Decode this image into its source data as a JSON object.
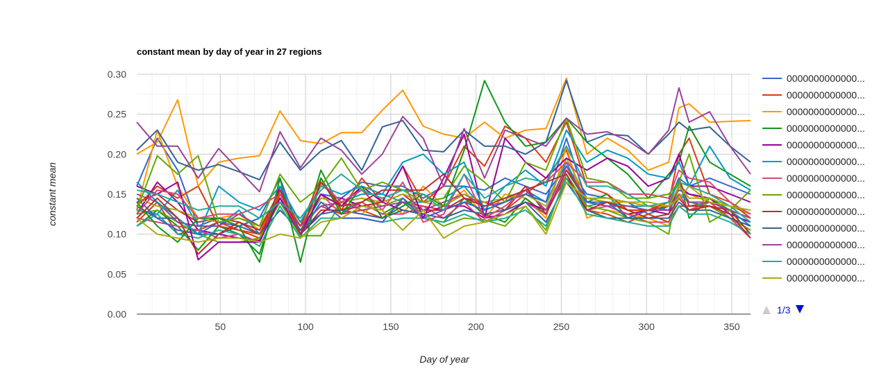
{
  "chart_data": {
    "type": "line",
    "title": "constant mean by day of year in 27 regions",
    "xlabel": "Day of year",
    "ylabel": "constant mean",
    "xlim": [
      1,
      361
    ],
    "ylim": [
      0,
      0.3
    ],
    "x_ticks": [
      50,
      100,
      150,
      200,
      250,
      300,
      350
    ],
    "y_ticks": [
      "0.00",
      "0.05",
      "0.10",
      "0.15",
      "0.20",
      "0.25",
      "0.30"
    ],
    "grid": true,
    "legend_position": "right",
    "legend_page": "1/3",
    "x": [
      1,
      13,
      25,
      37,
      49,
      61,
      73,
      85,
      97,
      109,
      121,
      133,
      145,
      157,
      169,
      181,
      193,
      205,
      217,
      229,
      241,
      253,
      265,
      277,
      289,
      301,
      313,
      319,
      325,
      337,
      349,
      361
    ],
    "series": [
      {
        "name": "0000000000000...",
        "color": "#3366cc",
        "values": [
          0.145,
          0.12,
          0.105,
          0.1,
          0.115,
          0.11,
          0.12,
          0.17,
          0.1,
          0.14,
          0.12,
          0.12,
          0.115,
          0.145,
          0.12,
          0.13,
          0.14,
          0.13,
          0.14,
          0.15,
          0.14,
          0.22,
          0.14,
          0.14,
          0.12,
          0.13,
          0.14,
          0.17,
          0.16,
          0.17,
          0.16,
          0.15
        ]
      },
      {
        "name": "0000000000000...",
        "color": "#dc3912",
        "values": [
          0.135,
          0.16,
          0.145,
          0.16,
          0.11,
          0.105,
          0.1,
          0.15,
          0.11,
          0.17,
          0.13,
          0.17,
          0.14,
          0.185,
          0.14,
          0.16,
          0.21,
          0.185,
          0.235,
          0.22,
          0.19,
          0.24,
          0.16,
          0.15,
          0.13,
          0.13,
          0.14,
          0.2,
          0.22,
          0.15,
          0.14,
          0.12
        ]
      },
      {
        "name": "0000000000000...",
        "color": "#ff9900",
        "values": [
          0.2,
          0.215,
          0.268,
          0.16,
          0.19,
          0.195,
          0.198,
          0.254,
          0.217,
          0.213,
          0.227,
          0.227,
          0.255,
          0.28,
          0.235,
          0.225,
          0.22,
          0.24,
          0.22,
          0.23,
          0.232,
          0.295,
          0.2,
          0.22,
          0.205,
          0.18,
          0.19,
          0.258,
          0.263,
          0.24,
          0.241,
          0.242
        ]
      },
      {
        "name": "0000000000000...",
        "color": "#109618",
        "values": [
          0.14,
          0.11,
          0.09,
          0.12,
          0.12,
          0.11,
          0.065,
          0.17,
          0.065,
          0.17,
          0.125,
          0.16,
          0.12,
          0.135,
          0.15,
          0.135,
          0.205,
          0.292,
          0.24,
          0.21,
          0.215,
          0.245,
          0.215,
          0.195,
          0.175,
          0.145,
          0.175,
          0.19,
          0.235,
          0.19,
          0.175,
          0.16
        ]
      },
      {
        "name": "0000000000000...",
        "color": "#990099",
        "values": [
          0.16,
          0.15,
          0.165,
          0.068,
          0.09,
          0.09,
          0.09,
          0.145,
          0.1,
          0.15,
          0.135,
          0.16,
          0.14,
          0.185,
          0.12,
          0.17,
          0.225,
          0.12,
          0.22,
          0.19,
          0.17,
          0.195,
          0.18,
          0.195,
          0.185,
          0.16,
          0.17,
          0.2,
          0.16,
          0.16,
          0.15,
          0.14
        ]
      },
      {
        "name": "0000000000000...",
        "color": "#0099c6",
        "values": [
          0.165,
          0.14,
          0.12,
          0.1,
          0.16,
          0.14,
          0.13,
          0.16,
          0.115,
          0.16,
          0.15,
          0.16,
          0.15,
          0.19,
          0.2,
          0.175,
          0.19,
          0.13,
          0.16,
          0.18,
          0.16,
          0.23,
          0.19,
          0.205,
          0.195,
          0.175,
          0.17,
          0.19,
          0.16,
          0.21,
          0.17,
          0.155
        ]
      },
      {
        "name": "0000000000000...",
        "color": "#dd4477",
        "values": [
          0.125,
          0.155,
          0.15,
          0.12,
          0.125,
          0.125,
          0.135,
          0.15,
          0.1,
          0.165,
          0.14,
          0.155,
          0.13,
          0.165,
          0.115,
          0.125,
          0.175,
          0.12,
          0.135,
          0.155,
          0.165,
          0.19,
          0.165,
          0.165,
          0.15,
          0.15,
          0.145,
          0.18,
          0.17,
          0.165,
          0.14,
          0.125
        ]
      },
      {
        "name": "0000000000000...",
        "color": "#66aa00",
        "values": [
          0.13,
          0.198,
          0.175,
          0.198,
          0.115,
          0.12,
          0.11,
          0.175,
          0.14,
          0.16,
          0.195,
          0.155,
          0.165,
          0.155,
          0.14,
          0.145,
          0.185,
          0.165,
          0.14,
          0.19,
          0.18,
          0.245,
          0.17,
          0.165,
          0.145,
          0.145,
          0.15,
          0.165,
          0.2,
          0.115,
          0.13,
          0.155
        ]
      },
      {
        "name": "0000000000000...",
        "color": "#b82e2e",
        "values": [
          0.12,
          0.145,
          0.12,
          0.075,
          0.1,
          0.115,
          0.105,
          0.155,
          0.1,
          0.165,
          0.135,
          0.14,
          0.155,
          0.155,
          0.155,
          0.175,
          0.145,
          0.135,
          0.145,
          0.155,
          0.165,
          0.175,
          0.13,
          0.14,
          0.13,
          0.12,
          0.125,
          0.145,
          0.13,
          0.135,
          0.125,
          0.095
        ]
      },
      {
        "name": "0000000000000...",
        "color": "#316395",
        "values": [
          0.205,
          0.23,
          0.19,
          0.18,
          0.187,
          0.178,
          0.168,
          0.215,
          0.18,
          0.204,
          0.217,
          0.18,
          0.234,
          0.242,
          0.205,
          0.203,
          0.23,
          0.21,
          0.21,
          0.2,
          0.215,
          0.292,
          0.215,
          0.225,
          0.223,
          0.2,
          0.225,
          0.24,
          0.23,
          0.234,
          0.21,
          0.19
        ]
      },
      {
        "name": "0000000000000...",
        "color": "#994499",
        "values": [
          0.24,
          0.21,
          0.21,
          0.17,
          0.207,
          0.18,
          0.153,
          0.228,
          0.183,
          0.22,
          0.205,
          0.175,
          0.2,
          0.247,
          0.22,
          0.16,
          0.232,
          0.17,
          0.23,
          0.22,
          0.21,
          0.245,
          0.225,
          0.228,
          0.217,
          0.2,
          0.23,
          0.283,
          0.24,
          0.253,
          0.21,
          0.175
        ]
      },
      {
        "name": "0000000000000...",
        "color": "#22aa99",
        "values": [
          0.155,
          0.15,
          0.14,
          0.13,
          0.135,
          0.135,
          0.12,
          0.14,
          0.12,
          0.155,
          0.175,
          0.155,
          0.145,
          0.155,
          0.15,
          0.13,
          0.175,
          0.145,
          0.16,
          0.17,
          0.165,
          0.21,
          0.16,
          0.16,
          0.15,
          0.135,
          0.14,
          0.165,
          0.16,
          0.15,
          0.135,
          0.115
        ]
      },
      {
        "name": "0000000000000...",
        "color": "#aaaa11",
        "values": [
          0.12,
          0.1,
          0.095,
          0.09,
          0.095,
          0.095,
          0.09,
          0.1,
          0.095,
          0.115,
          0.12,
          0.135,
          0.13,
          0.105,
          0.13,
          0.095,
          0.11,
          0.115,
          0.125,
          0.135,
          0.1,
          0.165,
          0.145,
          0.145,
          0.14,
          0.14,
          0.135,
          0.145,
          0.16,
          0.14,
          0.135,
          0.13
        ]
      },
      {
        "values": [
          0.16,
          0.22,
          0.18,
          0.11,
          0.12,
          0.11,
          0.12,
          0.14,
          0.11,
          0.15,
          0.145,
          0.165,
          0.16,
          0.16,
          0.145,
          0.16,
          0.16,
          0.155,
          0.17,
          0.16,
          0.15,
          0.185,
          0.15,
          0.145,
          0.14,
          0.125,
          0.135,
          0.155,
          0.15,
          0.145,
          0.135,
          0.125
        ]
      },
      {
        "values": [
          0.115,
          0.14,
          0.1,
          0.105,
          0.115,
          0.105,
          0.095,
          0.145,
          0.11,
          0.135,
          0.125,
          0.13,
          0.12,
          0.14,
          0.135,
          0.13,
          0.14,
          0.14,
          0.13,
          0.15,
          0.17,
          0.205,
          0.13,
          0.125,
          0.115,
          0.125,
          0.115,
          0.135,
          0.135,
          0.14,
          0.12,
          0.105
        ]
      },
      {
        "values": [
          0.13,
          0.23,
          0.16,
          0.12,
          0.12,
          0.125,
          0.105,
          0.145,
          0.1,
          0.14,
          0.13,
          0.125,
          0.145,
          0.125,
          0.16,
          0.135,
          0.155,
          0.12,
          0.15,
          0.145,
          0.12,
          0.21,
          0.12,
          0.13,
          0.125,
          0.12,
          0.11,
          0.16,
          0.15,
          0.14,
          0.13,
          0.11
        ]
      },
      {
        "values": [
          0.11,
          0.13,
          0.11,
          0.08,
          0.11,
          0.1,
          0.075,
          0.155,
          0.095,
          0.18,
          0.13,
          0.14,
          0.125,
          0.14,
          0.12,
          0.115,
          0.145,
          0.125,
          0.115,
          0.145,
          0.125,
          0.18,
          0.14,
          0.15,
          0.12,
          0.13,
          0.14,
          0.17,
          0.12,
          0.145,
          0.13,
          0.1
        ]
      },
      {
        "values": [
          0.125,
          0.165,
          0.14,
          0.105,
          0.1,
          0.095,
          0.092,
          0.16,
          0.1,
          0.125,
          0.145,
          0.135,
          0.14,
          0.13,
          0.125,
          0.135,
          0.135,
          0.12,
          0.125,
          0.14,
          0.13,
          0.17,
          0.14,
          0.135,
          0.125,
          0.13,
          0.125,
          0.16,
          0.15,
          0.145,
          0.125,
          0.115
        ]
      },
      {
        "values": [
          0.13,
          0.125,
          0.155,
          0.11,
          0.11,
          0.13,
          0.1,
          0.145,
          0.105,
          0.145,
          0.14,
          0.15,
          0.15,
          0.14,
          0.14,
          0.145,
          0.16,
          0.13,
          0.14,
          0.155,
          0.14,
          0.19,
          0.135,
          0.14,
          0.135,
          0.135,
          0.13,
          0.15,
          0.14,
          0.135,
          0.13,
          0.11
        ]
      },
      {
        "values": [
          0.12,
          0.115,
          0.11,
          0.105,
          0.095,
          0.1,
          0.09,
          0.15,
          0.11,
          0.15,
          0.125,
          0.14,
          0.125,
          0.125,
          0.135,
          0.12,
          0.14,
          0.115,
          0.13,
          0.14,
          0.125,
          0.175,
          0.13,
          0.135,
          0.125,
          0.115,
          0.115,
          0.15,
          0.13,
          0.14,
          0.12,
          0.095
        ]
      },
      {
        "values": [
          0.125,
          0.13,
          0.115,
          0.1,
          0.09,
          0.09,
          0.095,
          0.14,
          0.098,
          0.098,
          0.14,
          0.145,
          0.135,
          0.145,
          0.125,
          0.11,
          0.12,
          0.118,
          0.11,
          0.135,
          0.105,
          0.175,
          0.135,
          0.13,
          0.12,
          0.115,
          0.1,
          0.165,
          0.135,
          0.135,
          0.12,
          0.105
        ]
      },
      {
        "values": [
          0.14,
          0.15,
          0.13,
          0.115,
          0.12,
          0.115,
          0.1,
          0.145,
          0.1,
          0.13,
          0.13,
          0.135,
          0.14,
          0.15,
          0.13,
          0.13,
          0.145,
          0.14,
          0.13,
          0.16,
          0.125,
          0.18,
          0.145,
          0.14,
          0.13,
          0.13,
          0.135,
          0.17,
          0.135,
          0.135,
          0.13,
          0.1
        ]
      },
      {
        "values": [
          0.135,
          0.12,
          0.12,
          0.1,
          0.1,
          0.11,
          0.1,
          0.13,
          0.105,
          0.125,
          0.13,
          0.125,
          0.12,
          0.13,
          0.125,
          0.12,
          0.13,
          0.125,
          0.13,
          0.14,
          0.115,
          0.165,
          0.13,
          0.12,
          0.12,
          0.12,
          0.12,
          0.14,
          0.13,
          0.13,
          0.12,
          0.11
        ]
      },
      {
        "values": [
          0.15,
          0.14,
          0.115,
          0.11,
          0.11,
          0.125,
          0.11,
          0.14,
          0.11,
          0.135,
          0.14,
          0.13,
          0.135,
          0.14,
          0.13,
          0.14,
          0.15,
          0.135,
          0.14,
          0.155,
          0.13,
          0.185,
          0.14,
          0.135,
          0.135,
          0.13,
          0.13,
          0.16,
          0.14,
          0.14,
          0.13,
          0.12
        ]
      },
      {
        "values": [
          0.11,
          0.125,
          0.1,
          0.095,
          0.105,
          0.1,
          0.085,
          0.135,
          0.095,
          0.12,
          0.12,
          0.12,
          0.115,
          0.12,
          0.12,
          0.115,
          0.125,
          0.115,
          0.12,
          0.13,
          0.11,
          0.17,
          0.125,
          0.12,
          0.115,
          0.11,
          0.11,
          0.135,
          0.125,
          0.125,
          0.115,
          0.1
        ]
      },
      {
        "values": [
          0.145,
          0.135,
          0.13,
          0.12,
          0.115,
          0.12,
          0.11,
          0.15,
          0.115,
          0.145,
          0.14,
          0.145,
          0.14,
          0.15,
          0.14,
          0.135,
          0.15,
          0.14,
          0.145,
          0.15,
          0.135,
          0.195,
          0.145,
          0.14,
          0.14,
          0.135,
          0.135,
          0.16,
          0.145,
          0.145,
          0.135,
          0.125
        ]
      }
    ]
  },
  "pager": {
    "label": "1/3"
  }
}
